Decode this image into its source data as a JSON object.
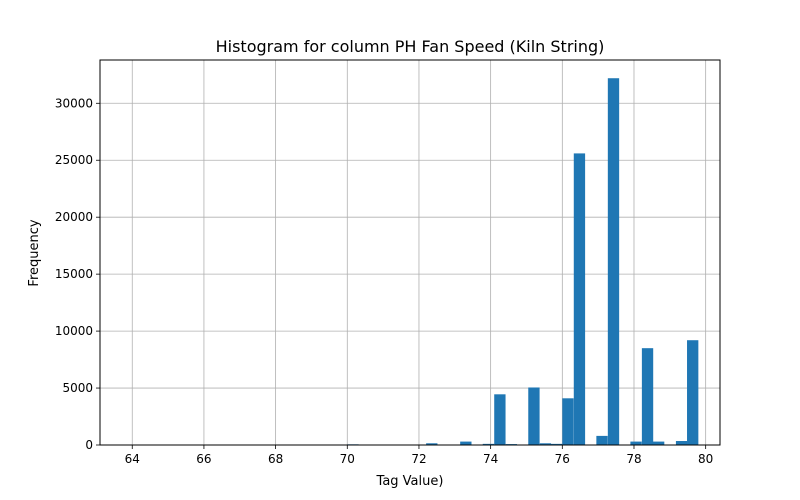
{
  "chart_data": {
    "type": "bar",
    "title": "Histogram for column PH Fan Speed  (Kiln String)",
    "xlabel": "Tag Value)",
    "ylabel": "Frequency",
    "xlim": [
      63.1,
      80.4
    ],
    "ylim": [
      0,
      33800
    ],
    "xticks": [
      64,
      66,
      68,
      70,
      72,
      74,
      76,
      78,
      80
    ],
    "yticks": [
      0,
      5000,
      10000,
      15000,
      20000,
      25000,
      30000
    ],
    "grid": true,
    "bar_color": "#1f77b4",
    "bin_width": 0.316,
    "bins": [
      {
        "x": 63.7,
        "value": 5
      },
      {
        "x": 70.0,
        "value": 60
      },
      {
        "x": 72.2,
        "value": 150
      },
      {
        "x": 73.15,
        "value": 300
      },
      {
        "x": 73.78,
        "value": 100
      },
      {
        "x": 74.1,
        "value": 4450
      },
      {
        "x": 74.42,
        "value": 80
      },
      {
        "x": 75.05,
        "value": 5050
      },
      {
        "x": 75.37,
        "value": 150
      },
      {
        "x": 75.68,
        "value": 100
      },
      {
        "x": 76.0,
        "value": 4100
      },
      {
        "x": 76.32,
        "value": 25600
      },
      {
        "x": 76.95,
        "value": 800
      },
      {
        "x": 77.27,
        "value": 32200
      },
      {
        "x": 77.9,
        "value": 300
      },
      {
        "x": 78.22,
        "value": 8500
      },
      {
        "x": 78.53,
        "value": 300
      },
      {
        "x": 79.17,
        "value": 350
      },
      {
        "x": 79.48,
        "value": 9200
      }
    ]
  }
}
